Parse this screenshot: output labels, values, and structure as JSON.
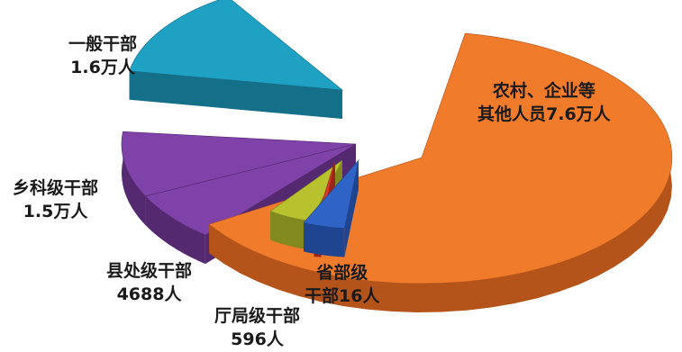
{
  "chart_data": {
    "type": "pie",
    "title": "",
    "slices": [
      {
        "line1": "农村、企业等",
        "line2": "其他人员7.6万人",
        "value": 76000,
        "color": "#f07b2b",
        "side": "#b4541a"
      },
      {
        "line1": "省部级",
        "line2": "干部16人",
        "value": 16,
        "color": "#2f63c6",
        "side": "#1f4590"
      },
      {
        "line1": "",
        "line2": "",
        "value": 0,
        "color": "#d83a2a",
        "side": "#9b2418"
      },
      {
        "line1": "厅局级干部",
        "line2": "596人",
        "value": 596,
        "color": "#b7c22e",
        "side": "#828a1f"
      },
      {
        "line1": "县处级干部",
        "line2": "4688人",
        "value": 4688,
        "color": "#7f42a8",
        "side": "#55296f"
      },
      {
        "line1": "乡科级干部",
        "line2": "1.5万人",
        "value": 15000,
        "color": "#7f42a8",
        "side": "#55296f"
      },
      {
        "line1": "一般干部",
        "line2": "1.6万人",
        "value": 16000,
        "color": "#1fa1c4",
        "side": "#146f88"
      }
    ]
  }
}
